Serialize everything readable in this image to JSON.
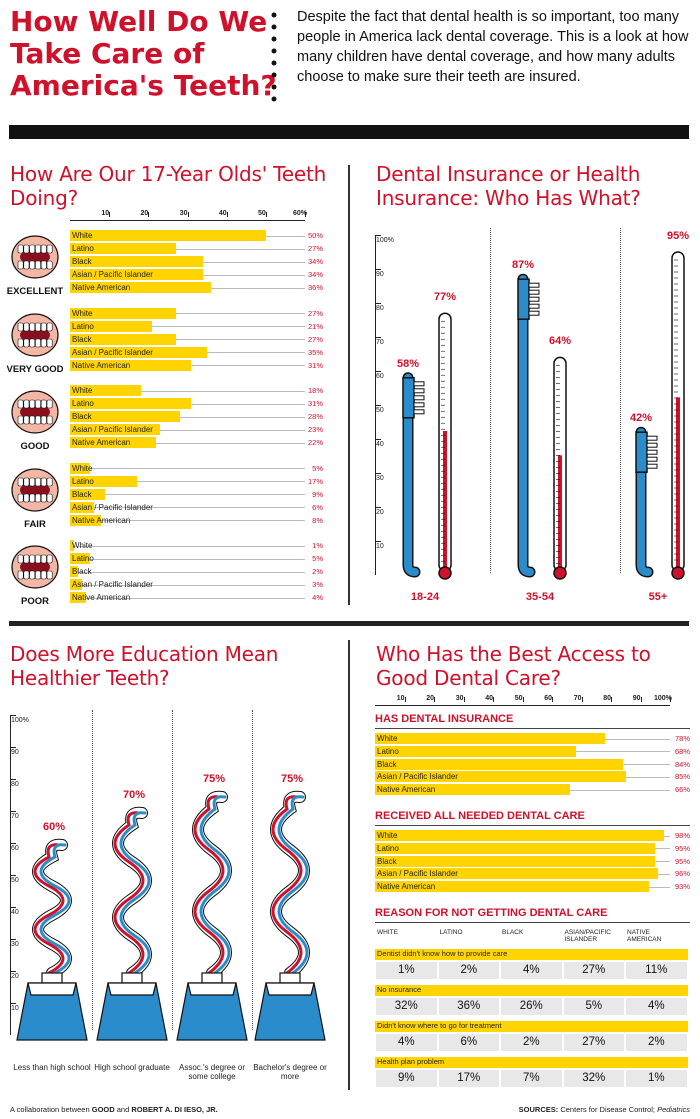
{
  "header": {
    "title": "How Well Do We Take Care of America's Teeth?",
    "intro": "Despite the fact that dental health is so important, too many people in America lack dental coverage. This is a look at how many children have dental coverage, and how many adults choose to make sure their teeth are insured."
  },
  "colors": {
    "accent": "#d0112b",
    "bar": "#ffd400",
    "blue": "#2b8ccc",
    "dark": "#111111"
  },
  "chart_data": [
    {
      "type": "bar",
      "title": "How Are Our 17-Year Olds' Teeth Doing?",
      "axis_ticks": [
        "10",
        "20",
        "30",
        "40",
        "50",
        "60%"
      ],
      "xlim": [
        0,
        60
      ],
      "series_names": [
        "White",
        "Latino",
        "Black",
        "Asian / Pacific Islander",
        "Native American"
      ],
      "groups": [
        {
          "name": "EXCELLENT",
          "values": [
            50,
            27,
            34,
            34,
            36
          ],
          "labels": [
            "50%",
            "27%",
            "34%",
            "34%",
            "36%"
          ]
        },
        {
          "name": "VERY GOOD",
          "values": [
            27,
            21,
            27,
            35,
            31
          ],
          "labels": [
            "27%",
            "21%",
            "27%",
            "35%",
            "31%"
          ]
        },
        {
          "name": "GOOD",
          "values": [
            18,
            31,
            28,
            23,
            22
          ],
          "labels": [
            "18%",
            "31%",
            "28%",
            "23%",
            "22%"
          ]
        },
        {
          "name": "FAIR",
          "values": [
            5,
            17,
            9,
            6,
            8
          ],
          "labels": [
            "5%",
            "17%",
            "9%",
            "6%",
            "8%"
          ]
        },
        {
          "name": "POOR",
          "values": [
            1,
            5,
            2,
            3,
            4
          ],
          "labels": [
            "1%",
            "5%",
            "2%",
            "3%",
            "4%"
          ]
        }
      ]
    },
    {
      "type": "bar",
      "title": "Dental Insurance or Health Insurance: Who Has What?",
      "axis_ticks": [
        "100%",
        "90",
        "80",
        "70",
        "60",
        "50",
        "40",
        "30",
        "20",
        "10"
      ],
      "ylim": [
        0,
        100
      ],
      "categories": [
        "18-24",
        "35-54",
        "55+"
      ],
      "series": [
        {
          "name": "Dental Insurance",
          "values": [
            58,
            87,
            42
          ],
          "labels": [
            "58%",
            "87%",
            "42%"
          ]
        },
        {
          "name": "Health Insurance",
          "values": [
            77,
            64,
            95
          ],
          "labels": [
            "77%",
            "64%",
            "95%"
          ]
        }
      ]
    },
    {
      "type": "bar",
      "title": "Does More Education Mean Healthier Teeth?",
      "axis_ticks": [
        "100%",
        "90",
        "80",
        "70",
        "60",
        "50",
        "40",
        "30",
        "20",
        "10"
      ],
      "ylim": [
        0,
        100
      ],
      "categories": [
        "Less than high school",
        "High school graduate",
        "Assoc.'s degree or some college",
        "Bachelor's degree or more"
      ],
      "values": [
        60,
        70,
        75,
        75
      ],
      "labels": [
        "60%",
        "70%",
        "75%",
        "75%"
      ]
    },
    {
      "type": "bar",
      "title": "Who Has the Best Access to Good Dental Care?",
      "axis_ticks": [
        "10",
        "20",
        "30",
        "40",
        "50",
        "60",
        "70",
        "80",
        "90",
        "100%"
      ],
      "xlim": [
        0,
        100
      ],
      "series_names": [
        "White",
        "Latino",
        "Black",
        "Asian / Pacific Islander",
        "Native American"
      ],
      "groups": [
        {
          "name": "HAS DENTAL INSURANCE",
          "values": [
            78,
            68,
            84,
            85,
            66
          ],
          "labels": [
            "78%",
            "68%",
            "84%",
            "85%",
            "66%"
          ]
        },
        {
          "name": "RECEIVED ALL NEEDED DENTAL CARE",
          "values": [
            98,
            95,
            95,
            96,
            93
          ],
          "labels": [
            "98%",
            "95%",
            "95%",
            "96%",
            "93%"
          ]
        }
      ]
    },
    {
      "type": "table",
      "title": "REASON FOR NOT GETTING DENTAL CARE",
      "columns": [
        "WHITE",
        "LATINO",
        "BLACK",
        "ASIAN/PACIFIC ISLANDER",
        "NATIVE AMERICAN"
      ],
      "rows": [
        {
          "reason": "Dentist didn't know how to provide care",
          "values": [
            "1%",
            "2%",
            "4%",
            "27%",
            "11%"
          ]
        },
        {
          "reason": "No insurance",
          "values": [
            "32%",
            "36%",
            "26%",
            "5%",
            "4%"
          ]
        },
        {
          "reason": "Didn't know where to go for treatment",
          "values": [
            "4%",
            "6%",
            "2%",
            "27%",
            "2%"
          ]
        },
        {
          "reason": "Health plan problem",
          "values": [
            "9%",
            "17%",
            "7%",
            "32%",
            "1%"
          ]
        }
      ]
    }
  ],
  "footer": {
    "credit_prefix": "A collaboration between ",
    "credit_good": "GOOD",
    "credit_and": " and ",
    "credit_author": "ROBERT A. DI IESO, JR.",
    "sources_label": "SOURCES:",
    "sources_text": " Centers for Disease Control; ",
    "sources_italic": "Pediatrics"
  }
}
